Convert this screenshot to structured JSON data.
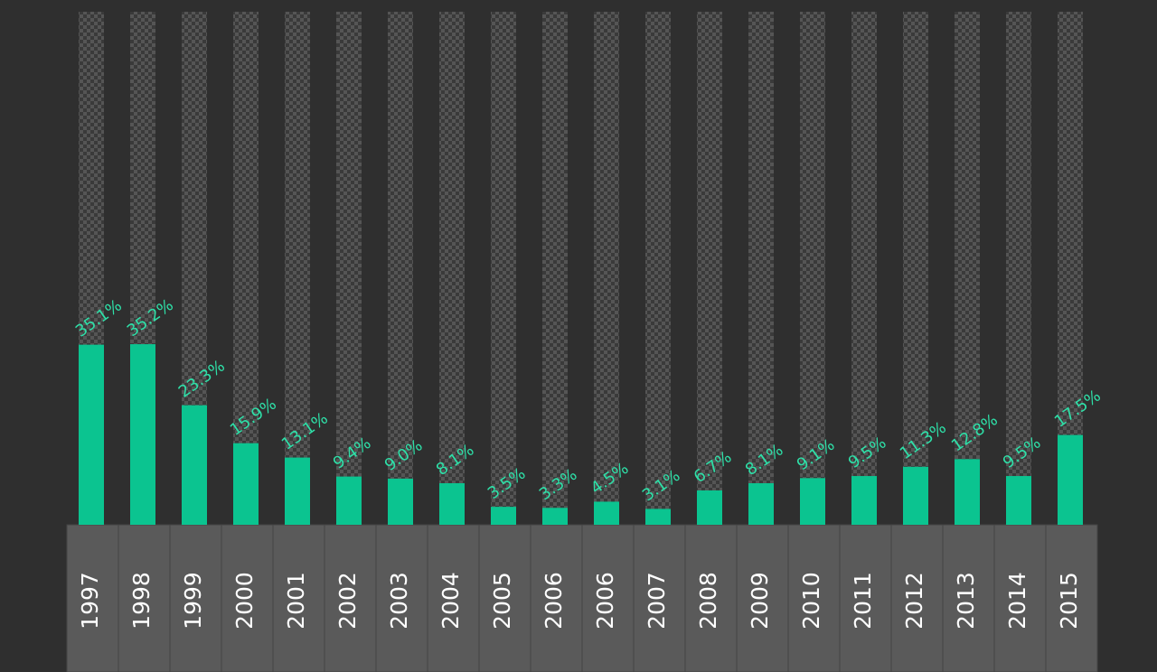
{
  "chart_data": {
    "type": "bar",
    "categories": [
      "1997",
      "1998",
      "1999",
      "2000",
      "2001",
      "2002",
      "2003",
      "2004",
      "2005",
      "2006",
      "2006",
      "2007",
      "2008",
      "2009",
      "2010",
      "2011",
      "2012",
      "2013",
      "2014",
      "2015"
    ],
    "values": [
      35.1,
      35.2,
      23.3,
      15.9,
      13.1,
      9.4,
      9.0,
      8.1,
      3.5,
      3.3,
      4.5,
      3.1,
      6.7,
      8.1,
      9.1,
      9.5,
      11.3,
      12.8,
      9.5,
      17.5
    ],
    "value_labels": [
      "35.1%",
      "35.2%",
      "23.3%",
      "15.9%",
      "13.1%",
      "9.4%",
      "9.0%",
      "8.1%",
      "3.5%",
      "3.3%",
      "4.5%",
      "3.1%",
      "6.7%",
      "8.1%",
      "9.1%",
      "9.5%",
      "11.3%",
      "12.8%",
      "9.5%",
      "17.5%"
    ],
    "color": "#0bc490",
    "ylim": [
      0,
      100
    ]
  }
}
